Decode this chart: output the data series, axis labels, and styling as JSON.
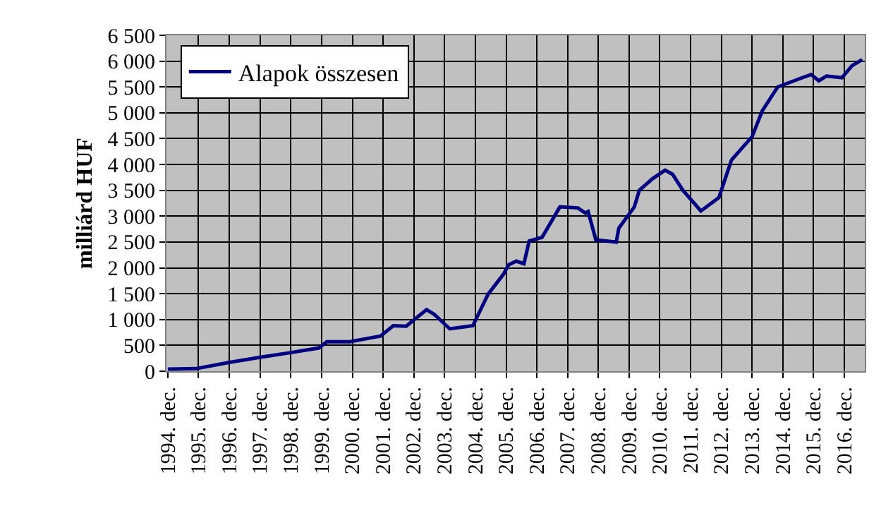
{
  "chart_data": {
    "type": "line",
    "ylabel": "milliárd HUF",
    "legend": "top left",
    "grid": true,
    "marker": "none",
    "line_style": "solid",
    "xlim": [
      "1994-11-15",
      "2017-07-31"
    ],
    "ylim": [
      0,
      6500
    ],
    "xticks": [
      {
        "value": "1994-12",
        "label": "1994. dec."
      },
      {
        "value": "1995-12",
        "label": "1995. dec."
      },
      {
        "value": "1996-12",
        "label": "1996. dec."
      },
      {
        "value": "1997-12",
        "label": "1997. dec."
      },
      {
        "value": "1998-12",
        "label": "1998. dec."
      },
      {
        "value": "1999-12",
        "label": "1999. dec."
      },
      {
        "value": "2000-12",
        "label": "2000. dec."
      },
      {
        "value": "2001-12",
        "label": "2001. dec."
      },
      {
        "value": "2002-12",
        "label": "2002. dec."
      },
      {
        "value": "2003-12",
        "label": "2003. dec."
      },
      {
        "value": "2004-12",
        "label": "2004. dec."
      },
      {
        "value": "2005-12",
        "label": "2005. dec."
      },
      {
        "value": "2006-12",
        "label": "2006. dec."
      },
      {
        "value": "2007-12",
        "label": "2007. dec."
      },
      {
        "value": "2008-12",
        "label": "2008. dec."
      },
      {
        "value": "2009-12",
        "label": "2009. dec."
      },
      {
        "value": "2010-12",
        "label": "2010. dec."
      },
      {
        "value": "2011-12",
        "label": "2011. dec."
      },
      {
        "value": "2012-12",
        "label": "2012. dec."
      },
      {
        "value": "2013-12",
        "label": "2013. dec."
      },
      {
        "value": "2014-12",
        "label": "2014. dec."
      },
      {
        "value": "2015-12",
        "label": "2015. dec."
      },
      {
        "value": "2016-12",
        "label": "2016. dec."
      }
    ],
    "yticks": [
      0,
      {
        "value": 500,
        "label": "500"
      },
      {
        "value": 1000,
        "label": "1 000"
      },
      {
        "value": 1500,
        "label": "1 500"
      },
      {
        "value": 2000,
        "label": "2 000"
      },
      {
        "value": 2500,
        "label": "2 500"
      },
      {
        "value": 3000,
        "label": "3 000"
      },
      {
        "value": 3500,
        "label": "3 500"
      },
      {
        "value": 4000,
        "label": "4 000"
      },
      {
        "value": 4500,
        "label": "4 500"
      },
      {
        "value": 5000,
        "label": "5 000"
      },
      {
        "value": 5500,
        "label": "5 500"
      },
      {
        "value": 6000,
        "label": "6 000"
      },
      {
        "value": 6500,
        "label": "6 500"
      }
    ],
    "series": [
      {
        "name": "Alapok összesen",
        "color": "#000080",
        "x": [
          "1994-12",
          "1995-11",
          "1996-12",
          "1997-12",
          "1998-12",
          "1999-11",
          "2000-02",
          "2000-11",
          "2001-11",
          "2002-04",
          "2002-09",
          "2003-05",
          "2003-08",
          "2004-02",
          "2004-11",
          "2005-05",
          "2005-11",
          "2006-01",
          "2006-04",
          "2006-07",
          "2006-09",
          "2007-02",
          "2007-09",
          "2008-04",
          "2008-07",
          "2008-08",
          "2008-11",
          "2009-07",
          "2009-08",
          "2010-02",
          "2010-04",
          "2010-09",
          "2011-02",
          "2011-05",
          "2011-09",
          "2012-04",
          "2012-11",
          "2013-04",
          "2013-12",
          "2014-04",
          "2014-10",
          "2015-06",
          "2015-11",
          "2016-02",
          "2016-05",
          "2016-11",
          "2017-03",
          "2017-07"
        ],
        "values": [
          40,
          50,
          170,
          270,
          360,
          450,
          570,
          570,
          680,
          880,
          870,
          1190,
          1100,
          820,
          880,
          1490,
          1880,
          2060,
          2130,
          2080,
          2520,
          2590,
          3180,
          3160,
          3060,
          3090,
          2540,
          2500,
          2770,
          3180,
          3500,
          3720,
          3890,
          3810,
          3500,
          3100,
          3360,
          4090,
          4540,
          5040,
          5500,
          5650,
          5740,
          5620,
          5710,
          5680,
          5910,
          6030
        ]
      }
    ]
  }
}
